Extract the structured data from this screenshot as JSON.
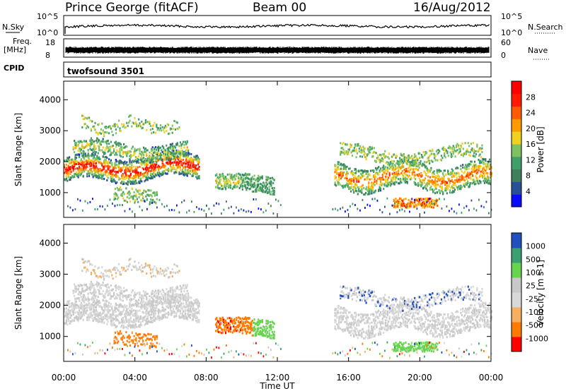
{
  "header": {
    "station": "Prince George (fitACF)",
    "beam": "Beam 00",
    "date": "16/Aug/2012"
  },
  "strips": {
    "nsky_label": "N.Sky",
    "nsearch_label": "N.Search",
    "nsky_ticks": [
      "10^5",
      "10^0"
    ],
    "nsearch_ticks": [
      "10^5",
      "10^0"
    ],
    "freq_label_1": "Freq.",
    "freq_label_2": "[MHz]",
    "freq_ticks": [
      "18",
      "8"
    ],
    "nave_label": "Nave",
    "nave_ticks": [
      "60",
      "0"
    ],
    "cpid_label": "CPID",
    "cpid_value": "twofsound 3501"
  },
  "colors": {
    "power_scale": [
      "#0a0aff",
      "#2a4f9a",
      "#3f7f5a",
      "#3f9f6a",
      "#7fc060",
      "#f0d020",
      "#ff9a00",
      "#ff5a00",
      "#ff1a00",
      "#ff0000"
    ],
    "velocity_scale": [
      "#ff0000",
      "#ff7a00",
      "#f4b060",
      "#d8d8d8",
      "#c8c8c8",
      "#66d44e",
      "#3aa070",
      "#2050c0"
    ]
  },
  "chart_data": [
    {
      "type": "heatmap",
      "name": "power",
      "ylabel": "Slant Range [km]",
      "y_ticks": [
        "4000",
        "3000",
        "2000",
        "1000"
      ],
      "ylim": [
        200,
        4600
      ],
      "colorbar_label": "Power [dB]",
      "colorbar_ticks": [
        "28",
        "24",
        "20",
        "16",
        "12",
        "8",
        "4"
      ],
      "clim": [
        0,
        32
      ]
    },
    {
      "type": "heatmap",
      "name": "velocity",
      "ylabel": "Slant Range [km]",
      "y_ticks": [
        "4000",
        "3000",
        "2000",
        "1000"
      ],
      "ylim": [
        200,
        4600
      ],
      "colorbar_label": "Velocity [m s-1]",
      "colorbar_ticks": [
        "1000",
        "500",
        "100",
        "25",
        "-25",
        "-100",
        "-500",
        "-1000"
      ]
    }
  ],
  "x_axis": {
    "label": "Time UT",
    "ticks": [
      "00:00",
      "04:00",
      "08:00",
      "12:00",
      "16:00",
      "20:00",
      "00:00"
    ],
    "xlim_hours": [
      0,
      24
    ]
  }
}
